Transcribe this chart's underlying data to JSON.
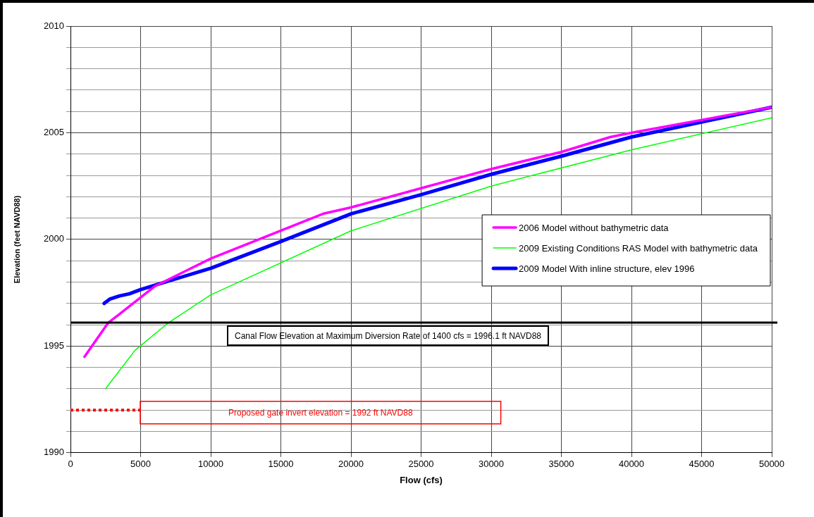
{
  "chart_data": {
    "type": "line",
    "xlabel": "Flow (cfs)",
    "ylabel": "Elevation (feet NAVD88)",
    "xlim": [
      0,
      50000
    ],
    "xticks": [
      0,
      5000,
      10000,
      15000,
      20000,
      25000,
      30000,
      35000,
      40000,
      45000,
      50000
    ],
    "ylim": [
      1990,
      2010
    ],
    "yticks": [
      1990,
      {
        "value": 1991,
        "label": null
      },
      {
        "value": 1992,
        "label": null
      },
      {
        "value": 1993,
        "label": null
      },
      {
        "value": 1994,
        "label": null
      },
      1995,
      {
        "value": 1996,
        "label": null
      },
      {
        "value": 1997,
        "label": null
      },
      {
        "value": 1998,
        "label": null
      },
      {
        "value": 1999,
        "label": null
      },
      2000,
      {
        "value": 2001,
        "label": null
      },
      {
        "value": 2002,
        "label": null
      },
      {
        "value": 2003,
        "label": null
      },
      {
        "value": 2004,
        "label": null
      },
      2005,
      {
        "value": 2006,
        "label": null
      },
      {
        "value": 2007,
        "label": null
      },
      {
        "value": 2008,
        "label": null
      },
      {
        "value": 2009,
        "label": null
      },
      2010
    ],
    "grid": true,
    "legend": "right",
    "marker": "none",
    "line_style": "solid",
    "series": [
      {
        "name": "2006 Model without bathymetric data",
        "color": "#ff00ff",
        "x": [
          1000,
          2700,
          3500,
          6000,
          10000,
          18000,
          20000,
          25000,
          30000,
          35000,
          38500,
          40000,
          50000
        ],
        "values": [
          1994.5,
          1996.1,
          1996.5,
          1997.8,
          1999.1,
          2001.2,
          2001.5,
          2002.4,
          2003.3,
          2004.1,
          2004.8,
          2005.0,
          2006.2
        ]
      },
      {
        "name": "2009 Existing Conditions RAS Model with bathymetric data",
        "color": "#00ff00",
        "x": [
          2500,
          4600,
          7000,
          10000,
          20000,
          30000,
          40000,
          50000
        ],
        "values": [
          1993.0,
          1994.8,
          1996.1,
          1997.4,
          2000.4,
          2002.5,
          2004.2,
          2005.7
        ]
      },
      {
        "name": "2009 Model With inline structure, elev 1996",
        "color": "#0000ff",
        "x": [
          2400,
          2800,
          3500,
          4200,
          5000,
          7500,
          9000,
          10000,
          15000,
          20000,
          25000,
          30000,
          35000,
          40000,
          50000
        ],
        "values": [
          1997.0,
          1997.2,
          1997.35,
          1997.45,
          1997.65,
          1998.15,
          1998.45,
          1998.65,
          1999.9,
          2001.2,
          2002.1,
          2003.05,
          2003.9,
          2004.8,
          2006.2
        ]
      },
      {
        "color": "#ff0000",
        "line_style": "dotted",
        "x": [
          0,
          5000
        ],
        "values": [
          1992,
          1992
        ]
      }
    ],
    "ref_lines": [
      {
        "axis": "y",
        "value": 1996.1,
        "label": "Canal Flow Elevation at Maximum Diversion Rate of 1400 cfs = 1996.1 ft NAVD88",
        "color": "#000000"
      }
    ],
    "annotations": [
      "Proposed gate invert elevation = 1992 ft NAVD88"
    ]
  }
}
